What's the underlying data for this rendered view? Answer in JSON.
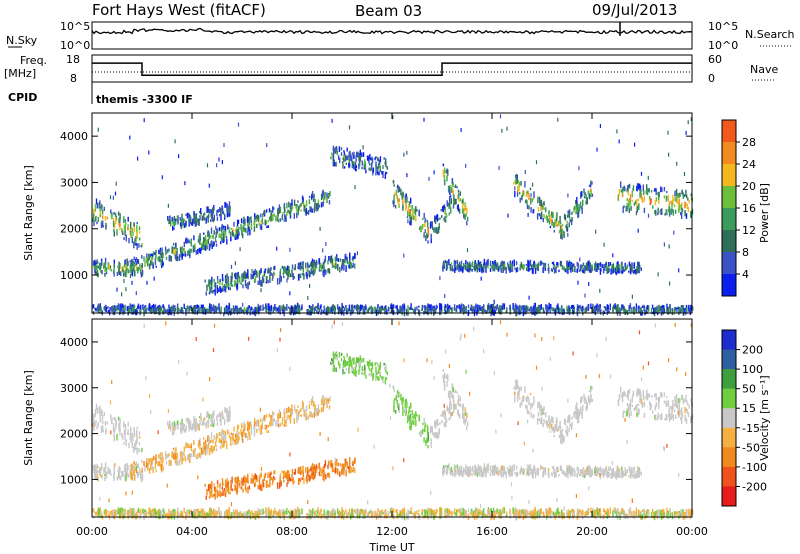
{
  "header": {
    "station": "Fort Hays West (fitACF)",
    "beam": "Beam 03",
    "date": "09/Jul/2013"
  },
  "strips": {
    "nsky_label": "N.Sky",
    "nsearch_label": "N.Search",
    "noise_ticks": [
      "10^5",
      "10^0"
    ],
    "freq_label": "Freq.",
    "freq_unit": "[MHz]",
    "freq_ticks": [
      "18",
      "8"
    ],
    "nave_label": "Nave",
    "nave_ticks": [
      "60",
      "0"
    ],
    "cpid_label": "CPID",
    "cpid_value": "themis -3300 IF"
  },
  "colors": {
    "power": [
      "#0a1eee",
      "#3b52c6",
      "#2f6f5a",
      "#3b9b5a",
      "#6bbf3b",
      "#f2b81d",
      "#f28a1d",
      "#f25a1d",
      "#e82222"
    ],
    "velocity_neg": [
      "#e81c1c",
      "#f0521c",
      "#f08a1c",
      "#f5b042"
    ],
    "velocity_mid": "#c8c8c8",
    "velocity_pos": [
      "#6fcf3f",
      "#3f9f3f",
      "#2f5f9f",
      "#1c2ccf"
    ]
  },
  "chart_data": {
    "type": "heatmap",
    "xlabel": "Time UT",
    "x_ticks": [
      "00:00",
      "04:00",
      "08:00",
      "12:00",
      "16:00",
      "20:00",
      "00:00"
    ],
    "xlim_hours": [
      0,
      24
    ],
    "panels": [
      {
        "name": "power",
        "ylabel": "Slant Range [km]",
        "y_ticks": [
          1000,
          2000,
          3000,
          4000
        ],
        "ylim": [
          180,
          4500
        ],
        "colorbar_label": "Power [dB]",
        "colorbar_ticks": [
          "4",
          "8",
          "12",
          "16",
          "20",
          "24",
          "28"
        ]
      },
      {
        "name": "velocity",
        "ylabel": "Slant Range [km]",
        "y_ticks": [
          1000,
          2000,
          3000,
          4000
        ],
        "ylim": [
          180,
          4500
        ],
        "colorbar_label": "Velocity [m s⁻¹]",
        "colorbar_ticks": [
          "200",
          "100",
          "50",
          "15",
          "-15",
          "-50",
          "-100",
          "-200"
        ]
      }
    ],
    "echo_bands": [
      {
        "t": [
          0.0,
          2.0
        ],
        "r": [
          2400,
          1800
        ],
        "width": 260,
        "power": 0.55,
        "vel": "gray"
      },
      {
        "t": [
          0.0,
          2.0
        ],
        "r": [
          1150,
          1150
        ],
        "width": 150,
        "power": 0.45,
        "vel": "gray"
      },
      {
        "t": [
          1.5,
          9.5
        ],
        "r": [
          1150,
          2700
        ],
        "width": 180,
        "power": 0.4,
        "vel": "orange"
      },
      {
        "t": [
          4.5,
          10.5
        ],
        "r": [
          750,
          1300
        ],
        "width": 160,
        "power": 0.35,
        "vel": "deeporange"
      },
      {
        "t": [
          3.0,
          5.5
        ],
        "r": [
          2100,
          2400
        ],
        "width": 140,
        "power": 0.3,
        "vel": "gray"
      },
      {
        "t": [
          9.5,
          11.8
        ],
        "r": [
          3600,
          3300
        ],
        "width": 200,
        "power": 0.3,
        "vel": "green"
      },
      {
        "t": [
          12.0,
          13.5
        ],
        "r": [
          2800,
          1900
        ],
        "width": 260,
        "power": 0.6,
        "vel": "green"
      },
      {
        "t": [
          13.5,
          14.5
        ],
        "r": [
          1900,
          2600
        ],
        "width": 200,
        "power": 0.4,
        "vel": "gray"
      },
      {
        "t": [
          14.0,
          15.0
        ],
        "r": [
          3200,
          2300
        ],
        "width": 220,
        "power": 0.55,
        "vel": "gray"
      },
      {
        "t": [
          16.8,
          18.8
        ],
        "r": [
          3000,
          2000
        ],
        "width": 240,
        "power": 0.55,
        "vel": "gray"
      },
      {
        "t": [
          18.8,
          20.0
        ],
        "r": [
          2000,
          2900
        ],
        "width": 220,
        "power": 0.45,
        "vel": "gray"
      },
      {
        "t": [
          21.0,
          24.0
        ],
        "r": [
          2700,
          2500
        ],
        "width": 280,
        "power": 0.6,
        "vel": "gray"
      },
      {
        "t": [
          14.0,
          22.0
        ],
        "r": [
          1200,
          1150
        ],
        "width": 90,
        "power": 0.3,
        "vel": "gray"
      },
      {
        "t": [
          0.0,
          24.0
        ],
        "r": [
          240,
          240
        ],
        "width": 90,
        "power": 0.25,
        "vel": "yellow"
      }
    ],
    "freq_series": [
      {
        "t": [
          0.0,
          2.0,
          2.0,
          14.0,
          14.0,
          24.0
        ],
        "mhz": [
          15.0,
          15.0,
          10.5,
          10.5,
          15.0,
          15.0
        ]
      }
    ]
  }
}
